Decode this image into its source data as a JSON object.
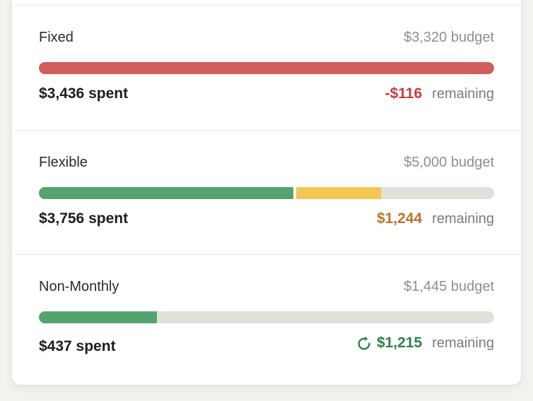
{
  "page": {
    "background_color": "#f4f2ef",
    "card_color": "#ffffff",
    "divider_color": "#ececea"
  },
  "colors": {
    "over_red_bar": "#d15c5c",
    "over_red_text": "#c13f3f",
    "green_bar": "#55a470",
    "green_text": "#2e7d4f",
    "warn_yellow_bar": "#f3c754",
    "warn_amber_text": "#b5762d",
    "track_gray": "#e1e0db",
    "pace_marker": "#5c5c5a",
    "name_text": "#2b2b29",
    "muted_text": "#8f8f8d",
    "spent_text": "#1e1e1c"
  },
  "rows": [
    {
      "name": "Fixed",
      "budget_label": "$3,320 budget",
      "budget_value": 3320,
      "spent_label": "$3,436 spent",
      "spent_value": 3436,
      "remaining_amount": "-$116",
      "remaining_value": -116,
      "remaining_suffix": "remaining",
      "remaining_color": "#c13f3f",
      "bar": {
        "track_color": "#e1e0db",
        "segments": [
          {
            "color": "#d15c5c",
            "width_pct": 100
          }
        ],
        "marker_pct": null
      }
    },
    {
      "name": "Flexible",
      "budget_label": "$5,000 budget",
      "budget_value": 5000,
      "spent_label": "$3,756 spent",
      "spent_value": 3756,
      "remaining_amount": "$1,244",
      "remaining_value": 1244,
      "remaining_suffix": "remaining",
      "remaining_color": "#b5762d",
      "bar": {
        "track_color": "#e1e0db",
        "segments": [
          {
            "color": "#55a470",
            "width_pct": 56.2
          },
          {
            "color": "#f3c754",
            "width_pct": 18.9
          }
        ],
        "marker_pct": 56.2
      }
    },
    {
      "name": "Non-Monthly",
      "budget_label": "$1,445 budget",
      "budget_value": 1445,
      "spent_label": "$437 spent",
      "spent_value": 437,
      "remaining_amount": "$1,215",
      "remaining_value": 1215,
      "remaining_suffix": "remaining",
      "remaining_color": "#2e7d4f",
      "remaining_icon": "rollover-icon",
      "bar": {
        "track_color": "#e1e0db",
        "segments": [
          {
            "color": "#55a470",
            "width_pct": 26.0
          }
        ],
        "marker_pct": null
      }
    }
  ]
}
